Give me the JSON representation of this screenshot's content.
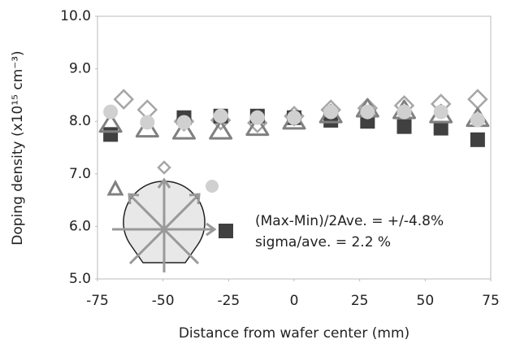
{
  "chart_data": {
    "type": "scatter",
    "x_label": "Distance from wafer center (mm)",
    "y_label": "Doping density (x10¹⁵ cm⁻³)",
    "annotations": [
      "(Max-Min)/2Ave. = +/-4.8%",
      "sigma/ave. = 2.2 %"
    ],
    "xlim": [
      -75,
      75
    ],
    "xticks": [
      -75,
      -50,
      -25,
      0,
      25,
      50,
      75
    ],
    "ylim": [
      5.0,
      10.0
    ],
    "yticks": [
      {
        "value": 5.0,
        "label": "5.0"
      },
      {
        "value": 6.0,
        "label": "6.0"
      },
      {
        "value": 7.0,
        "label": "7.0"
      },
      {
        "value": 8.0,
        "label": "8.0"
      },
      {
        "value": 9.0,
        "label": "9.0"
      },
      {
        "value": 10.0,
        "label": "10.0"
      }
    ],
    "series": [
      {
        "marker": "diamond",
        "color": "#a6a6a6",
        "x": [
          -65,
          -56,
          -42,
          -28,
          -14,
          0,
          14,
          28,
          42,
          56,
          70
        ],
        "values": [
          8.42,
          8.22,
          8.0,
          8.02,
          7.97,
          8.1,
          8.22,
          8.25,
          8.3,
          8.33,
          8.42
        ]
      },
      {
        "marker": "square",
        "color": "#404040",
        "x": [
          -70,
          -42,
          -28,
          -14,
          0,
          14,
          28,
          42,
          56,
          70
        ],
        "values": [
          7.75,
          8.07,
          8.1,
          8.1,
          8.07,
          8.02,
          8.0,
          7.9,
          7.87,
          7.65
        ]
      },
      {
        "marker": "triangle",
        "color": "#808080",
        "x": [
          -70,
          -56,
          -42,
          -28,
          -14,
          0,
          14,
          28,
          42,
          56,
          70
        ],
        "values": [
          7.96,
          7.87,
          7.83,
          7.83,
          7.9,
          8.02,
          8.14,
          8.25,
          8.22,
          8.14,
          8.07
        ]
      },
      {
        "marker": "circle",
        "color": "#d0d0d0",
        "x": [
          -70,
          -56,
          -42,
          -28,
          -14,
          0,
          14,
          28,
          42,
          56,
          70
        ],
        "values": [
          8.18,
          7.98,
          7.98,
          8.1,
          8.07,
          8.07,
          8.18,
          8.18,
          8.18,
          8.18,
          8.03
        ]
      }
    ]
  }
}
